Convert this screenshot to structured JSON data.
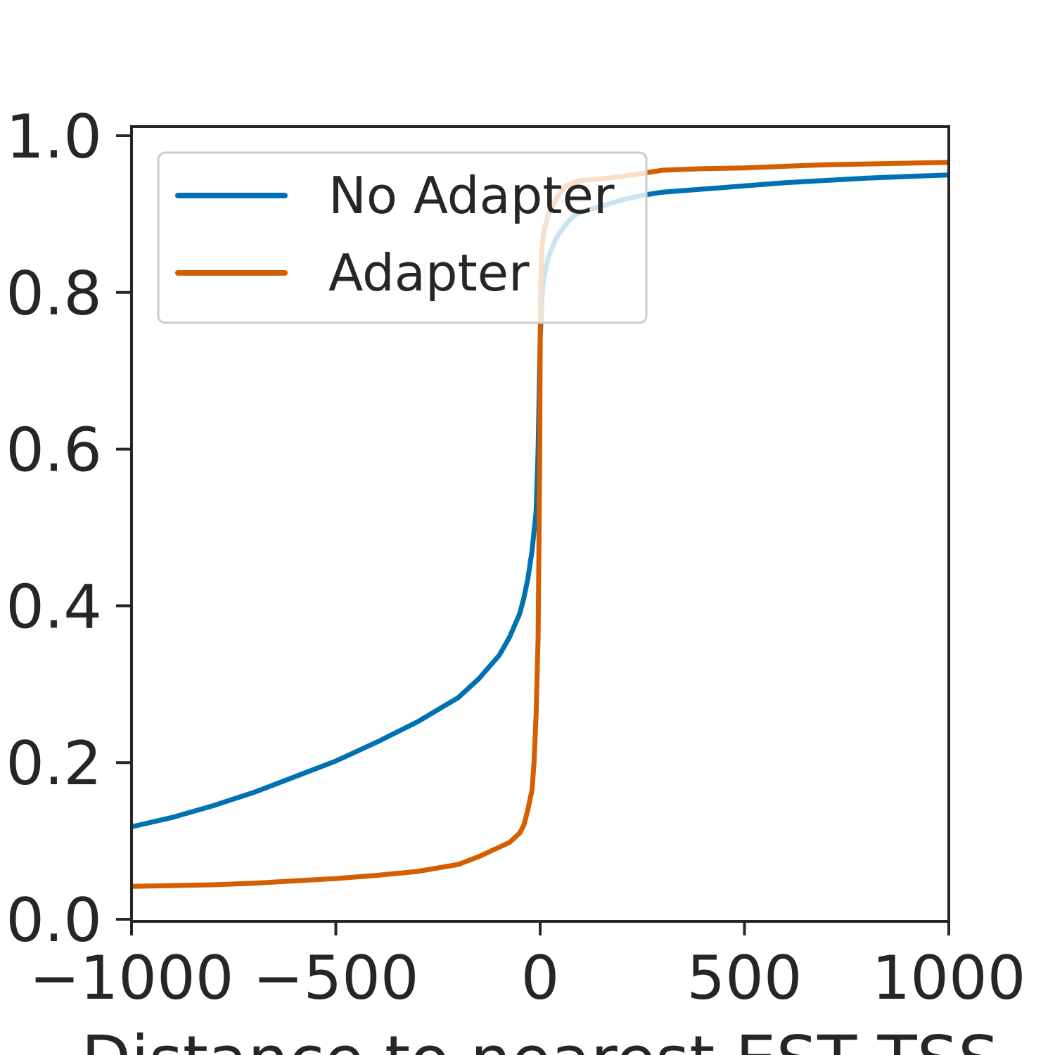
{
  "chart_data": {
    "type": "line",
    "xlabel": "Distance to nearest EST TSS",
    "ylabel": "",
    "title": "",
    "xlim": [
      -1000,
      1000
    ],
    "ylim": [
      0,
      1.0
    ],
    "x_ticks": [
      -1000,
      -500,
      0,
      500,
      1000
    ],
    "x_tick_labels": [
      "−1000",
      "−500",
      "0",
      "500",
      "1000"
    ],
    "y_ticks": [
      0,
      0.2,
      0.4,
      0.6,
      0.8,
      1.0
    ],
    "y_tick_labels": [
      "0.0",
      "0.2",
      "0.4",
      "0.6",
      "0.8",
      "1.0"
    ],
    "grid": false,
    "legend_position": "top-left",
    "series": [
      {
        "name": "No Adapter",
        "color": "#0072b2",
        "x": [
          -1000,
          -900,
          -800,
          -700,
          -600,
          -500,
          -400,
          -300,
          -200,
          -150,
          -100,
          -75,
          -50,
          -40,
          -30,
          -20,
          -10,
          -5,
          0,
          5,
          10,
          20,
          40,
          60,
          80,
          100,
          150,
          200,
          250,
          300,
          400,
          500,
          600,
          700,
          800,
          900,
          1000
        ],
        "y": [
          0.118,
          0.13,
          0.145,
          0.162,
          0.182,
          0.202,
          0.226,
          0.252,
          0.283,
          0.307,
          0.337,
          0.36,
          0.39,
          0.41,
          0.435,
          0.47,
          0.52,
          0.6,
          0.74,
          0.8,
          0.822,
          0.845,
          0.87,
          0.885,
          0.897,
          0.903,
          0.91,
          0.918,
          0.924,
          0.928,
          0.932,
          0.936,
          0.94,
          0.943,
          0.946,
          0.948,
          0.95
        ]
      },
      {
        "name": "Adapter",
        "color": "#d55e00",
        "x": [
          -1000,
          -900,
          -800,
          -700,
          -600,
          -500,
          -400,
          -300,
          -200,
          -150,
          -100,
          -75,
          -50,
          -40,
          -30,
          -20,
          -15,
          -10,
          -5,
          -3,
          -1,
          0,
          1,
          3,
          5,
          10,
          20,
          40,
          60,
          80,
          100,
          150,
          200,
          250,
          300,
          400,
          500,
          600,
          700,
          800,
          900,
          1000
        ],
        "y": [
          0.042,
          0.043,
          0.044,
          0.046,
          0.049,
          0.052,
          0.056,
          0.061,
          0.07,
          0.08,
          0.092,
          0.098,
          0.11,
          0.12,
          0.14,
          0.165,
          0.2,
          0.26,
          0.36,
          0.48,
          0.6,
          0.72,
          0.8,
          0.84,
          0.86,
          0.88,
          0.9,
          0.92,
          0.935,
          0.94,
          0.943,
          0.945,
          0.948,
          0.952,
          0.956,
          0.958,
          0.959,
          0.961,
          0.963,
          0.964,
          0.965,
          0.966
        ]
      }
    ]
  }
}
